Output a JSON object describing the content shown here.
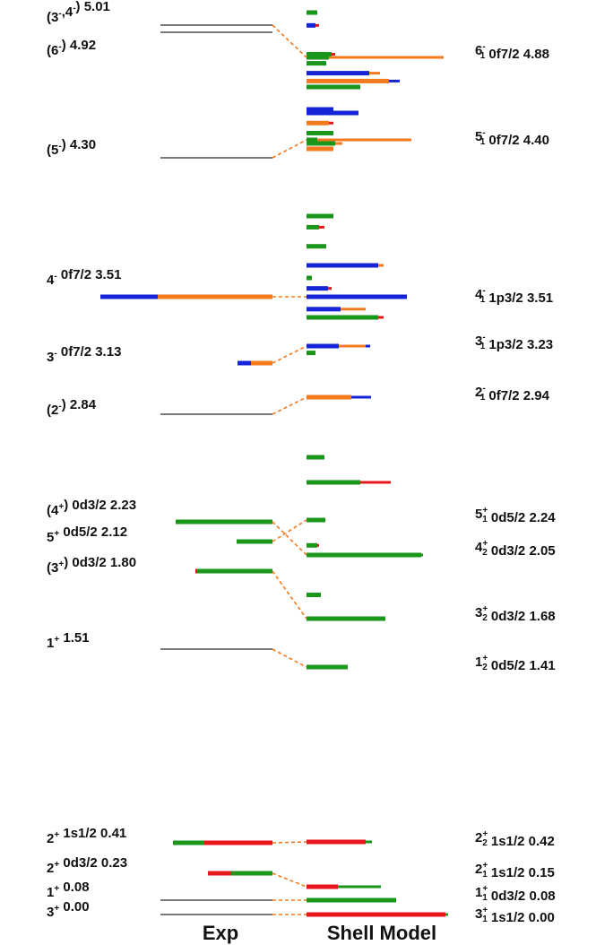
{
  "chart_data": {
    "type": "level-scheme",
    "colors": {
      "s1/2": "#e8171b",
      "d3/2": "#1a961a",
      "d5/2": "#1a961a",
      "f7/2": "#f47a1e",
      "p3/2": "#1424d6",
      "none": "#7a7a7a",
      "connector": "#f47a1e",
      "green": "#1a961a",
      "red": "#e8171b",
      "orange": "#f47a1e",
      "blue": "#1424d6"
    },
    "columns": {
      "exp": "Exp",
      "sm": "Shell Model"
    },
    "exp_levels": [
      {
        "id": "e501",
        "jp": "3⁻,4⁻",
        "label": "(3⁻,4⁻) 5.01",
        "energy": 5.01,
        "line": "none",
        "label_y": 24
      },
      {
        "id": "e492",
        "jp": "6⁻",
        "label": "(6⁻) 4.92",
        "energy": 4.92,
        "line": "none",
        "label_y": 61
      },
      {
        "id": "e430",
        "jp": "5⁻",
        "label": "(5⁻) 4.30",
        "energy": 4.3,
        "line": "none",
        "label_y": 172
      },
      {
        "id": "e351",
        "jp": "4⁻",
        "label": "4⁻ 0f7/2 3.51",
        "energy": 3.51,
        "line": "bars",
        "label_y": 317,
        "bars": [
          {
            "color": "blue",
            "len": 64
          },
          {
            "color": "orange",
            "len": 128
          }
        ]
      },
      {
        "id": "e313",
        "jp": "3⁻",
        "label": "3⁻ 0f7/2 3.13",
        "energy": 3.13,
        "line": "bars",
        "label_y": 403,
        "bars": [
          {
            "color": "blue",
            "len": 15
          },
          {
            "color": "orange",
            "len": 24
          }
        ]
      },
      {
        "id": "e284",
        "jp": "2⁻",
        "label": "(2⁻) 2.84",
        "energy": 2.84,
        "line": "none",
        "label_y": 462
      },
      {
        "id": "e223",
        "jp": "4⁺",
        "label": "(4⁺) 0d3/2 2.23",
        "energy": 2.23,
        "line": "bars",
        "label_y": 574,
        "bars": [
          {
            "color": "green",
            "len": 108
          }
        ]
      },
      {
        "id": "e212",
        "jp": "5⁺",
        "label": "5⁺ 0d5/2 2.12",
        "energy": 2.12,
        "line": "bars",
        "label_y": 604,
        "bars": [
          {
            "color": "green",
            "len": 40
          }
        ]
      },
      {
        "id": "e180",
        "jp": "3⁺",
        "label": "(3⁺) 0d3/2 1.80",
        "energy": 1.8,
        "line": "bars",
        "label_y": 638,
        "bars": [
          {
            "color": "red",
            "len": 2
          },
          {
            "color": "green",
            "len": 84
          }
        ]
      },
      {
        "id": "e151",
        "jp": "1⁺",
        "label": "1⁺ 1.51",
        "energy": 1.51,
        "line": "none",
        "label_y": 722
      },
      {
        "id": "e041",
        "jp": "2⁺",
        "label": "2⁺ 1s1/2 0.41",
        "energy": 0.41,
        "line": "bars",
        "label_y": 940,
        "bars": [
          {
            "color": "green",
            "len": 35
          },
          {
            "color": "red",
            "len": 76
          }
        ]
      },
      {
        "id": "e023",
        "jp": "2⁺",
        "label": "2⁺ 0d3/2 0.23",
        "energy": 0.23,
        "line": "bars",
        "label_y": 973,
        "bars": [
          {
            "color": "red",
            "len": 26
          },
          {
            "color": "green",
            "len": 46
          }
        ]
      },
      {
        "id": "e008",
        "jp": "1⁺",
        "label": "1⁺ 0.08",
        "energy": 0.08,
        "line": "none",
        "label_y": 1000
      },
      {
        "id": "e000",
        "jp": "3⁺",
        "label": "3⁺ 0.00",
        "energy": 0.0,
        "line": "none",
        "label_y": 1022
      }
    ],
    "sm_levels": [
      {
        "id": "s488",
        "label": "6⁻₁ 0f7/2 4.88",
        "energy": 4.88,
        "bars": [
          {
            "color": "green",
            "len": 25
          },
          {
            "color": "orange",
            "len": 128
          }
        ]
      },
      {
        "id": "s440",
        "label": "5⁻₁ 0f7/2 4.40",
        "energy": 4.4,
        "bars": [
          {
            "color": "green",
            "len": 12
          },
          {
            "color": "orange",
            "len": 105
          }
        ]
      },
      {
        "id": "s351",
        "label": "4⁻₁ 1p3/2 3.51",
        "energy": 3.51,
        "bars": [
          {
            "color": "blue",
            "len": 112
          }
        ]
      },
      {
        "id": "s323",
        "label": "3⁻₁ 1p3/2 3.23",
        "energy": 3.23,
        "bars": [
          {
            "color": "blue",
            "len": 36
          },
          {
            "color": "orange",
            "len": 30
          },
          {
            "color": "blue",
            "len": 5
          }
        ]
      },
      {
        "id": "s294",
        "label": "2⁻₁ 0f7/2 2.94",
        "energy": 2.94,
        "bars": [
          {
            "color": "orange",
            "len": 50
          },
          {
            "color": "blue",
            "len": 22
          }
        ]
      },
      {
        "id": "s224",
        "label": "5⁺₁ 0d5/2 2.24",
        "energy": 2.24,
        "bars": [
          {
            "color": "green",
            "len": 21
          }
        ]
      },
      {
        "id": "s205",
        "label": "4⁺₂ 0d3/2 2.05",
        "energy": 2.05,
        "bars": [
          {
            "color": "green",
            "len": 128
          },
          {
            "color": "green",
            "len": 2
          }
        ]
      },
      {
        "id": "s168",
        "label": "3⁺₂ 0d3/2 1.68",
        "energy": 1.68,
        "bars": [
          {
            "color": "green",
            "len": 88
          }
        ]
      },
      {
        "id": "s141",
        "label": "1⁺₂ 0d5/2 1.41",
        "energy": 1.41,
        "bars": [
          {
            "color": "green",
            "len": 46
          }
        ]
      },
      {
        "id": "s042",
        "label": "2⁺₂ 1s1/2 0.42",
        "energy": 0.42,
        "bars": [
          {
            "color": "red",
            "len": 66
          },
          {
            "color": "green",
            "len": 7
          }
        ]
      },
      {
        "id": "s015",
        "label": "2⁺₁ 1s1/2 0.15",
        "energy": 0.15,
        "bars": [
          {
            "color": "red",
            "len": 35
          },
          {
            "color": "green",
            "len": 48
          }
        ]
      },
      {
        "id": "s008",
        "label": "1⁺₁ 0d3/2 0.08",
        "energy": 0.08,
        "bars": [
          {
            "color": "green",
            "len": 100
          }
        ]
      },
      {
        "id": "s000",
        "label": "3⁺₁ 1s1/2 0.00",
        "energy": 0.0,
        "bars": [
          {
            "color": "red",
            "len": 155
          },
          {
            "color": "green",
            "len": 3
          }
        ]
      }
    ],
    "extra_sm_bars": [
      {
        "energy": 5.01,
        "bars": [
          {
            "color": "green",
            "len": 12
          }
        ]
      },
      {
        "energy": 4.98,
        "bars": [
          {
            "color": "blue",
            "len": 10
          },
          {
            "color": "red",
            "len": 4
          }
        ]
      },
      {
        "energy": 4.9,
        "bars": [
          {
            "color": "green",
            "len": 28
          },
          {
            "color": "red",
            "len": 4
          }
        ]
      },
      {
        "energy": 4.85,
        "bars": [
          {
            "color": "green",
            "len": 22
          }
        ]
      },
      {
        "energy": 4.8,
        "bars": [
          {
            "color": "blue",
            "len": 70
          },
          {
            "color": "orange",
            "len": 12
          }
        ]
      },
      {
        "energy": 4.76,
        "bars": [
          {
            "color": "orange",
            "len": 92
          },
          {
            "color": "blue",
            "len": 12
          }
        ]
      },
      {
        "energy": 4.73,
        "bars": [
          {
            "color": "green",
            "len": 60
          }
        ]
      },
      {
        "energy": 4.58,
        "bars": [
          {
            "color": "blue",
            "len": 30
          }
        ]
      },
      {
        "energy": 4.48,
        "bars": [
          {
            "color": "blue",
            "len": 58
          }
        ]
      },
      {
        "energy": 4.45,
        "bars": [
          {
            "color": "orange",
            "len": 25
          },
          {
            "color": "red",
            "len": 5
          }
        ]
      },
      {
        "energy": 4.42,
        "bars": [
          {
            "color": "green",
            "len": 30
          }
        ]
      },
      {
        "energy": 4.38,
        "bars": [
          {
            "color": "green",
            "len": 32
          },
          {
            "color": "orange",
            "len": 8
          }
        ]
      },
      {
        "energy": 4.35,
        "bars": [
          {
            "color": "orange",
            "len": 30
          }
        ]
      },
      {
        "energy": 3.97,
        "bars": [
          {
            "color": "green",
            "len": 30
          }
        ]
      },
      {
        "energy": 3.9,
        "bars": [
          {
            "color": "green",
            "len": 14
          },
          {
            "color": "red",
            "len": 6
          }
        ]
      },
      {
        "energy": 3.78,
        "bars": [
          {
            "color": "green",
            "len": 22
          }
        ]
      },
      {
        "energy": 3.66,
        "bars": [
          {
            "color": "blue",
            "len": 80
          },
          {
            "color": "orange",
            "len": 6
          }
        ]
      },
      {
        "energy": 3.6,
        "bars": [
          {
            "color": "green",
            "len": 6
          }
        ]
      },
      {
        "energy": 3.55,
        "bars": [
          {
            "color": "blue",
            "len": 24
          },
          {
            "color": "red",
            "len": 4
          }
        ]
      },
      {
        "energy": 3.42,
        "bars": [
          {
            "color": "blue",
            "len": 38
          },
          {
            "color": "orange",
            "len": 28
          }
        ]
      },
      {
        "energy": 3.36,
        "bars": [
          {
            "color": "green",
            "len": 80
          },
          {
            "color": "red",
            "len": 6
          }
        ]
      },
      {
        "energy": 3.19,
        "bars": [
          {
            "color": "green",
            "len": 10
          }
        ]
      },
      {
        "energy": 2.52,
        "bars": [
          {
            "color": "green",
            "len": 20
          }
        ]
      },
      {
        "energy": 2.38,
        "bars": [
          {
            "color": "green",
            "len": 60
          },
          {
            "color": "red",
            "len": 34
          }
        ]
      },
      {
        "energy": 2.1,
        "bars": [
          {
            "color": "green",
            "len": 12
          },
          {
            "color": "red",
            "len": 2
          }
        ]
      },
      {
        "energy": 1.74,
        "bars": [
          {
            "color": "green",
            "len": 16
          }
        ]
      }
    ],
    "connectors": [
      [
        "e492",
        "s488"
      ],
      [
        "e430",
        "s440"
      ],
      [
        "e351",
        "s351"
      ],
      [
        "e313",
        "s323"
      ],
      [
        "e284",
        "s294"
      ],
      [
        "e223",
        "s205"
      ],
      [
        "e212",
        "s224"
      ],
      [
        "e180",
        "s168"
      ],
      [
        "e151",
        "s141"
      ],
      [
        "e041",
        "s042"
      ],
      [
        "e023",
        "s015"
      ],
      [
        "e008",
        "s008"
      ],
      [
        "e000",
        "s000"
      ]
    ]
  }
}
